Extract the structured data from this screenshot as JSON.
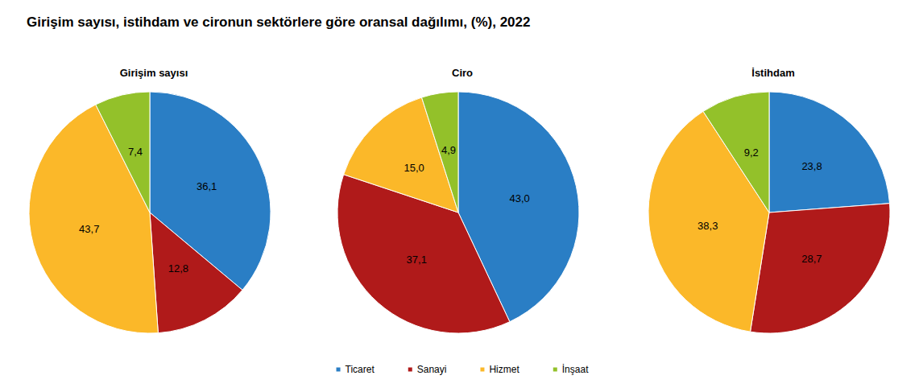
{
  "title": "Girişim sayısı, istihdam ve cironun sektörlere göre oransal dağılımı, (%), 2022",
  "legend": "bottom",
  "chart_data": [
    {
      "type": "pie",
      "title": "Girişim sayısı",
      "categories": [
        "Ticaret",
        "Sanayi",
        "Hizmet",
        "İnşaat"
      ],
      "values": [
        36.1,
        12.8,
        43.7,
        7.4
      ],
      "value_labels": [
        "36,1",
        "12,8",
        "43,7",
        "7,4"
      ],
      "colors": [
        "#2a7ec5",
        "#b01a1a",
        "#fbb829",
        "#93c12a"
      ],
      "data_labels": true
    },
    {
      "type": "pie",
      "title": "Ciro",
      "categories": [
        "Ticaret",
        "Sanayi",
        "Hizmet",
        "İnşaat"
      ],
      "values": [
        43.0,
        37.1,
        15.0,
        4.9
      ],
      "value_labels": [
        "43,0",
        "37,1",
        "15,0",
        "4,9"
      ],
      "colors": [
        "#2a7ec5",
        "#b01a1a",
        "#fbb829",
        "#93c12a"
      ],
      "data_labels": true
    },
    {
      "type": "pie",
      "title": "İstihdam",
      "categories": [
        "Ticaret",
        "Sanayi",
        "Hizmet",
        "İnşaat"
      ],
      "values": [
        23.8,
        28.7,
        38.3,
        9.2
      ],
      "value_labels": [
        "23,8",
        "28,7",
        "38,3",
        "9,2"
      ],
      "colors": [
        "#2a7ec5",
        "#b01a1a",
        "#fbb829",
        "#93c12a"
      ],
      "data_labels": true
    }
  ]
}
